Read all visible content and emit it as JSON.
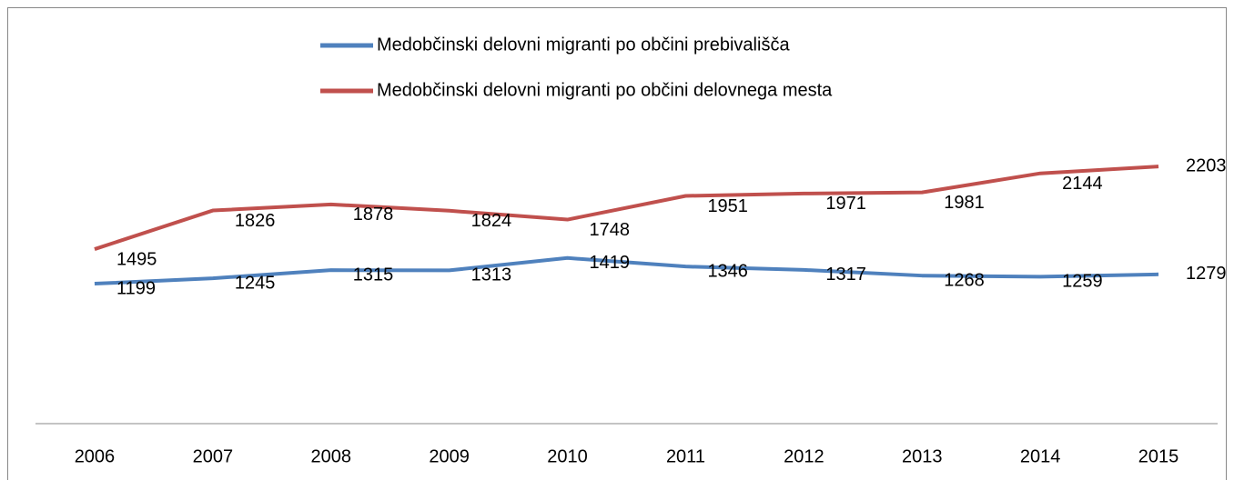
{
  "chart_data": {
    "type": "line",
    "x": [
      "2006",
      "2007",
      "2008",
      "2009",
      "2010",
      "2011",
      "2012",
      "2013",
      "2014",
      "2015"
    ],
    "series": [
      {
        "name": "Medobčinski delovni migranti po občini prebivališča",
        "color": "#4f81bd",
        "values": [
          1199,
          1245,
          1315,
          1313,
          1419,
          1346,
          1317,
          1268,
          1259,
          1279
        ]
      },
      {
        "name": "Medobčinski delovni migranti po občini delovnega mesta",
        "color": "#c0504d",
        "values": [
          1495,
          1826,
          1878,
          1824,
          1748,
          1951,
          1971,
          1981,
          2144,
          2203
        ]
      }
    ],
    "ylim": [
      0,
      2500
    ],
    "legend": "top"
  }
}
